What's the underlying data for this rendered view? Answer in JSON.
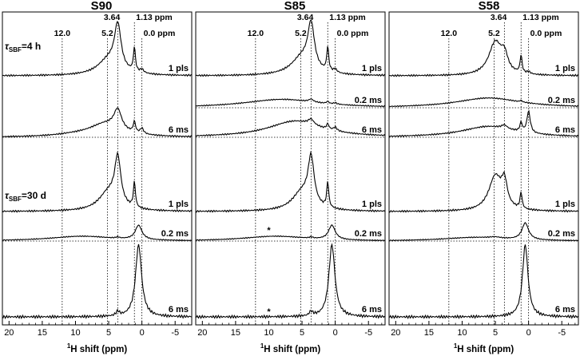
{
  "chart_data": {
    "type": "line",
    "panels": [
      {
        "title": "S90",
        "reference_lines": [
          "12.0",
          "5.2",
          "3.64",
          "1.13 ppm",
          "0.0 ppm"
        ],
        "traces": [
          {
            "group": "4 h",
            "label": "1 pls",
            "peaks": [
              [
                3.64,
                1.0,
                0.6
              ],
              [
                5.0,
                0.35,
                2.0
              ],
              [
                1.13,
                0.55,
                0.18
              ],
              [
                0.0,
                0.08,
                0.3
              ]
            ]
          },
          {
            "group": "4 h",
            "label": "6 ms",
            "peaks": [
              [
                3.64,
                0.55,
                0.7
              ],
              [
                5.5,
                0.35,
                3.0
              ],
              [
                1.13,
                0.3,
                0.2
              ],
              [
                0.0,
                0.15,
                0.3
              ],
              [
                10,
                0.05,
                4
              ]
            ]
          },
          {
            "group": "30 d",
            "label": "1 pls",
            "peaks": [
              [
                3.64,
                1.0,
                0.55
              ],
              [
                5.0,
                0.4,
                1.8
              ],
              [
                1.13,
                0.55,
                0.18
              ]
            ]
          },
          {
            "group": "30 d",
            "label": "0.2 ms",
            "peaks": [
              [
                0.5,
                0.6,
                0.6
              ],
              [
                9,
                0.2,
                6
              ],
              [
                3.64,
                0.05,
                0.3
              ]
            ]
          },
          {
            "group": "30 d",
            "label": "6 ms",
            "peaks": [
              [
                0.5,
                1.0,
                0.55
              ],
              [
                3.64,
                0.06,
                0.3
              ]
            ]
          }
        ]
      },
      {
        "title": "S85",
        "reference_lines": [
          "12.0",
          "5.2",
          "3.64",
          "1.13 ppm",
          "0.0 ppm"
        ],
        "traces": [
          {
            "group": "4 h",
            "label": "1 pls",
            "peaks": [
              [
                3.64,
                1.0,
                0.6
              ],
              [
                5.0,
                0.4,
                2.0
              ],
              [
                1.13,
                0.55,
                0.18
              ],
              [
                0.0,
                0.08,
                0.3
              ]
            ]
          },
          {
            "group": "4 h",
            "label": "0.2 ms",
            "peaks": [
              [
                8,
                0.3,
                7
              ],
              [
                3.64,
                0.1,
                0.4
              ],
              [
                1.13,
                0.08,
                0.2
              ],
              [
                0.0,
                0.05,
                0.3
              ]
            ]
          },
          {
            "group": "4 h",
            "label": "6 ms",
            "peaks": [
              [
                6,
                0.45,
                5
              ],
              [
                3.64,
                0.15,
                0.5
              ],
              [
                1.13,
                0.15,
                0.2
              ],
              [
                0.0,
                0.1,
                0.3
              ]
            ]
          },
          {
            "group": "30 d",
            "label": "1 pls",
            "peaks": [
              [
                3.64,
                1.0,
                0.55
              ],
              [
                5.0,
                0.4,
                1.8
              ],
              [
                1.13,
                0.55,
                0.18
              ]
            ]
          },
          {
            "group": "30 d",
            "label": "0.2 ms",
            "peaks": [
              [
                0.5,
                0.6,
                0.6
              ],
              [
                9,
                0.2,
                6
              ],
              [
                3.64,
                0.05,
                0.3
              ]
            ],
            "annotation": "*"
          },
          {
            "group": "30 d",
            "label": "6 ms",
            "peaks": [
              [
                0.5,
                1.0,
                0.55
              ],
              [
                3.64,
                0.06,
                0.3
              ]
            ],
            "annotation": "*"
          }
        ]
      },
      {
        "title": "S58",
        "reference_lines": [
          "12.0",
          "5.2",
          "3.64",
          "1.13 ppm",
          "0.0 ppm"
        ],
        "traces": [
          {
            "group": "4 h",
            "label": "1 pls",
            "peaks": [
              [
                5.0,
                0.75,
                1.2
              ],
              [
                3.64,
                0.35,
                0.6
              ],
              [
                1.13,
                0.4,
                0.18
              ],
              [
                0.0,
                0.05,
                0.3
              ]
            ]
          },
          {
            "group": "4 h",
            "label": "0.2 ms",
            "peaks": [
              [
                6,
                0.35,
                6
              ],
              [
                1.13,
                0.06,
                0.2
              ]
            ]
          },
          {
            "group": "4 h",
            "label": "6 ms",
            "peaks": [
              [
                6,
                0.3,
                5
              ],
              [
                1.13,
                0.25,
                0.2
              ],
              [
                0.0,
                0.6,
                0.3
              ],
              [
                3.64,
                0.1,
                0.5
              ]
            ]
          },
          {
            "group": "30 d",
            "label": "1 pls",
            "peaks": [
              [
                5.0,
                0.75,
                1.2
              ],
              [
                3.64,
                0.5,
                0.5
              ],
              [
                1.13,
                0.35,
                0.18
              ]
            ]
          },
          {
            "group": "30 d",
            "label": "0.2 ms",
            "peaks": [
              [
                0.5,
                0.7,
                0.6
              ],
              [
                8,
                0.15,
                6
              ],
              [
                5.0,
                0.05,
                1
              ]
            ]
          },
          {
            "group": "30 d",
            "label": "6 ms",
            "peaks": [
              [
                0.5,
                1.0,
                0.5
              ]
            ]
          }
        ]
      }
    ],
    "group_labels": [
      {
        "tau": "τ",
        "sub": "SBF",
        "text": "=4 h"
      },
      {
        "tau": "τ",
        "sub": "SBF",
        "text": "=30 d"
      }
    ],
    "xlabel": {
      "sup": "1",
      "text": "H shift (ppm)"
    },
    "xlim": [
      21,
      -7.5
    ],
    "xticks": [
      "20",
      "15",
      "10",
      "5",
      "0",
      "-5"
    ],
    "xtick_values": [
      20,
      15,
      10,
      5,
      0,
      -5
    ],
    "reference_values": [
      12.0,
      5.2,
      3.64,
      1.13,
      0.0
    ],
    "line_color": "#000000"
  }
}
